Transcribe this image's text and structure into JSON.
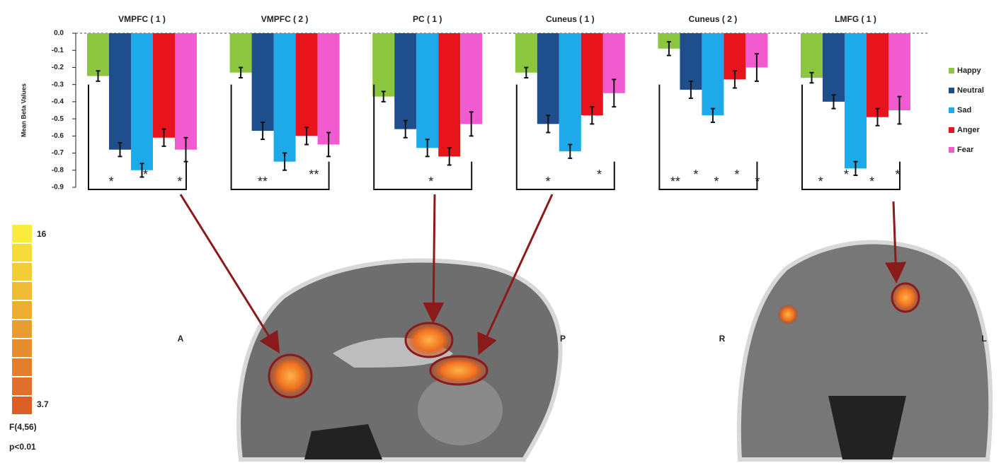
{
  "chart_data": {
    "type": "bar",
    "y_label": "Mean Beta Values",
    "categories": [
      "VMPFC ( 1 )",
      "VMPFC ( 2 )",
      "PC ( 1 )",
      "Cuneus ( 1 )",
      "Cuneus ( 2 )",
      "LMFG ( 1 )"
    ],
    "series": [
      {
        "name": "Happy",
        "color": "#8cc63f",
        "values": [
          -0.25,
          -0.23,
          -0.37,
          -0.23,
          -0.09,
          -0.26
        ],
        "errors": [
          0.03,
          0.03,
          0.03,
          0.03,
          0.04,
          0.03
        ]
      },
      {
        "name": "Neutral",
        "color": "#1f4e8c",
        "values": [
          -0.68,
          -0.57,
          -0.56,
          -0.53,
          -0.33,
          -0.4
        ],
        "errors": [
          0.04,
          0.05,
          0.05,
          0.05,
          0.05,
          0.04
        ]
      },
      {
        "name": "Sad",
        "color": "#1ea9e8",
        "values": [
          -0.8,
          -0.75,
          -0.67,
          -0.69,
          -0.48,
          -0.79
        ],
        "errors": [
          0.04,
          0.05,
          0.05,
          0.04,
          0.04,
          0.04
        ]
      },
      {
        "name": "Anger",
        "color": "#e8141c",
        "values": [
          -0.61,
          -0.6,
          -0.72,
          -0.48,
          -0.27,
          -0.49
        ],
        "errors": [
          0.05,
          0.05,
          0.05,
          0.05,
          0.05,
          0.05
        ]
      },
      {
        "name": "Fear",
        "color": "#f25bd0",
        "values": [
          -0.68,
          -0.65,
          -0.53,
          -0.35,
          -0.2,
          -0.45
        ],
        "errors": [
          0.07,
          0.07,
          0.07,
          0.08,
          0.08,
          0.08
        ]
      }
    ],
    "ylim": [
      -0.9,
      0
    ],
    "yticks": [
      {
        "value": 0,
        "label": "0.0"
      },
      -0.1,
      -0.2,
      -0.3,
      -0.4,
      -0.5,
      -0.6,
      -0.7,
      -0.8,
      -0.9
    ],
    "legend": "right",
    "significance": [
      [
        "*",
        "*",
        "*"
      ],
      [
        "**",
        "**"
      ],
      [
        "*"
      ],
      [
        "*",
        "*"
      ],
      [
        "**",
        "*",
        "*",
        "*",
        "*"
      ],
      [
        "*",
        "*",
        "*",
        "*"
      ]
    ],
    "colorbar": {
      "range": [
        3.7,
        16
      ],
      "label": "F(4,56)",
      "threshold": "p<0.01"
    },
    "orientation_labels": [
      "A",
      "P",
      "R",
      "L"
    ]
  }
}
